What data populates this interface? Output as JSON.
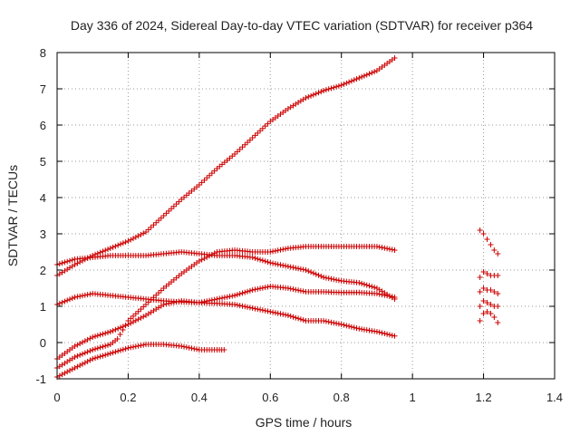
{
  "chart_data": {
    "type": "scatter",
    "title": "Day 336 of 2024, Sidereal Day-to-day VTEC variation (SDTVAR) for receiver p364",
    "xlabel": "GPS time / hours",
    "ylabel": "SDTVAR / TECUs",
    "xlim": [
      0,
      1.4
    ],
    "ylim": [
      -1,
      8
    ],
    "xticks": [
      "0",
      "0.2",
      "0.4",
      "0.6",
      "0.8",
      "1",
      "1.2",
      "1.4"
    ],
    "yticks": [
      "-1",
      "0",
      "1",
      "2",
      "3",
      "4",
      "5",
      "6",
      "7",
      "8"
    ],
    "grid": true,
    "marker": "+",
    "color": "#cc0000",
    "series": [
      {
        "name": "s1",
        "x": [
          0,
          0.05,
          0.1,
          0.15,
          0.2,
          0.25,
          0.3,
          0.35,
          0.4,
          0.45,
          0.5,
          0.55,
          0.6,
          0.65,
          0.7,
          0.75,
          0.8,
          0.85,
          0.9,
          0.95
        ],
        "y": [
          1.85,
          2.15,
          2.4,
          2.6,
          2.8,
          3.05,
          3.5,
          3.95,
          4.35,
          4.8,
          5.2,
          5.65,
          6.1,
          6.45,
          6.75,
          6.95,
          7.1,
          7.3,
          7.5,
          7.85
        ]
      },
      {
        "name": "s2",
        "x": [
          0,
          0.05,
          0.1,
          0.15,
          0.2,
          0.25,
          0.3,
          0.35,
          0.4,
          0.45,
          0.5,
          0.55,
          0.6,
          0.65,
          0.7,
          0.75,
          0.8,
          0.85,
          0.9,
          0.95
        ],
        "y": [
          2.15,
          2.3,
          2.35,
          2.4,
          2.4,
          2.4,
          2.45,
          2.5,
          2.45,
          2.4,
          2.4,
          2.35,
          2.2,
          2.1,
          2.0,
          1.8,
          1.7,
          1.65,
          1.5,
          1.2
        ]
      },
      {
        "name": "s3",
        "x": [
          0,
          0.05,
          0.1,
          0.15,
          0.2,
          0.25,
          0.3,
          0.35,
          0.4,
          0.45,
          0.5,
          0.55,
          0.6,
          0.65,
          0.7,
          0.75,
          0.8,
          0.85,
          0.9,
          0.95
        ],
        "y": [
          1.05,
          1.25,
          1.35,
          1.3,
          1.25,
          1.2,
          1.15,
          1.12,
          1.1,
          1.08,
          1.05,
          0.95,
          0.85,
          0.75,
          0.6,
          0.6,
          0.5,
          0.38,
          0.3,
          0.18
        ]
      },
      {
        "name": "s4",
        "x": [
          0,
          0.05,
          0.1,
          0.15,
          0.2,
          0.25,
          0.3,
          0.35,
          0.4,
          0.45,
          0.5,
          0.55,
          0.6,
          0.65,
          0.7,
          0.75,
          0.8,
          0.85,
          0.9,
          0.95
        ],
        "y": [
          -0.45,
          -0.1,
          0.15,
          0.3,
          0.5,
          0.75,
          1.05,
          1.15,
          1.1,
          1.2,
          1.3,
          1.45,
          1.55,
          1.5,
          1.4,
          1.4,
          1.38,
          1.38,
          1.35,
          1.25
        ]
      },
      {
        "name": "s5",
        "x": [
          0,
          0.05,
          0.1,
          0.15,
          0.17,
          0.2,
          0.25,
          0.3,
          0.35,
          0.4,
          0.45,
          0.5,
          0.55,
          0.6,
          0.65,
          0.7,
          0.75,
          0.8,
          0.85,
          0.9,
          0.95
        ],
        "y": [
          -0.7,
          -0.4,
          -0.2,
          -0.05,
          0.1,
          0.6,
          1.05,
          1.5,
          1.9,
          2.25,
          2.5,
          2.55,
          2.5,
          2.5,
          2.6,
          2.65,
          2.65,
          2.65,
          2.65,
          2.65,
          2.55
        ]
      },
      {
        "name": "s6",
        "x": [
          0,
          0.05,
          0.1,
          0.15,
          0.2,
          0.25,
          0.3,
          0.35,
          0.4,
          0.45,
          0.47
        ],
        "y": [
          -0.95,
          -0.7,
          -0.45,
          -0.3,
          -0.15,
          -0.05,
          -0.05,
          -0.1,
          -0.2,
          -0.2,
          -0.2
        ]
      },
      {
        "name": "s7",
        "x": [
          1.19,
          1.2,
          1.21,
          1.22,
          1.23,
          1.24
        ],
        "y": [
          3.1,
          3.0,
          2.85,
          2.7,
          2.55,
          2.45
        ]
      },
      {
        "name": "s8",
        "x": [
          1.19,
          1.2,
          1.21,
          1.22,
          1.23,
          1.24
        ],
        "y": [
          1.8,
          1.95,
          1.9,
          1.85,
          1.85,
          1.85
        ]
      },
      {
        "name": "s9",
        "x": [
          1.19,
          1.2,
          1.21,
          1.22,
          1.23,
          1.24
        ],
        "y": [
          1.4,
          1.5,
          1.45,
          1.45,
          1.4,
          1.35
        ]
      },
      {
        "name": "s10",
        "x": [
          1.19,
          1.2,
          1.21,
          1.22,
          1.23,
          1.24
        ],
        "y": [
          1.0,
          1.15,
          1.1,
          1.05,
          1.0,
          1.0
        ]
      },
      {
        "name": "s11",
        "x": [
          1.19,
          1.2,
          1.21,
          1.22,
          1.23,
          1.24
        ],
        "y": [
          0.6,
          0.8,
          0.85,
          0.8,
          0.7,
          0.55
        ]
      }
    ]
  }
}
